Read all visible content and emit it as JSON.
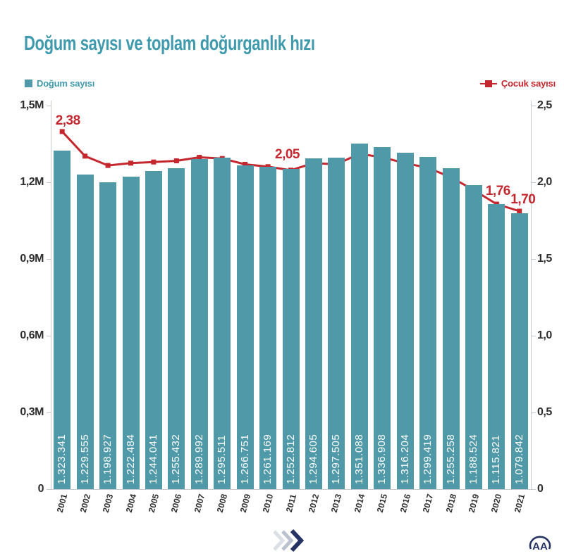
{
  "title": "Doğum sayısı ve toplam doğurganlık hızı",
  "legend": {
    "bars": "Doğum sayısı",
    "line": "Çocuk sayısı"
  },
  "axes": {
    "left_ticks": [
      "1,5M",
      "1,2M",
      "0,9M",
      "0,6M",
      "0,3M",
      "0"
    ],
    "right_ticks": [
      "2,5",
      "2,0",
      "1,5",
      "1,0",
      "0,5",
      "0"
    ]
  },
  "chart_data": {
    "type": "bar+line",
    "categories": [
      "2001",
      "2002",
      "2003",
      "2004",
      "2005",
      "2006",
      "2007",
      "2008",
      "2009",
      "2010",
      "2011",
      "2012",
      "2013",
      "2014",
      "2015",
      "2016",
      "2017",
      "2018",
      "2019",
      "2020",
      "2021"
    ],
    "series": [
      {
        "name": "Doğum sayısı",
        "type": "bar",
        "axis": "left",
        "values": [
          1323341,
          1229555,
          1198927,
          1222484,
          1244041,
          1255432,
          1289992,
          1295511,
          1266751,
          1261169,
          1252812,
          1294605,
          1297505,
          1351088,
          1336908,
          1316204,
          1299419,
          1255258,
          1188524,
          1115821,
          1079842
        ],
        "labels": [
          "1.323.341",
          "1.229.555",
          "1.198.927",
          "1.222.484",
          "1.244.041",
          "1.255.432",
          "1.289.992",
          "1.295.511",
          "1.266.751",
          "1.261.169",
          "1.252.812",
          "1.294.605",
          "1.297.505",
          "1.351.088",
          "1.336.908",
          "1.316.204",
          "1.299.419",
          "1.255.258",
          "1.188.524",
          "1.115.821",
          "1.079.842"
        ]
      },
      {
        "name": "Çocuk sayısı",
        "type": "line",
        "axis": "right",
        "values": [
          2.38,
          2.17,
          2.09,
          2.11,
          2.12,
          2.13,
          2.16,
          2.15,
          2.1,
          2.08,
          2.05,
          2.11,
          2.1,
          2.19,
          2.16,
          2.11,
          2.07,
          1.99,
          1.88,
          1.76,
          1.7
        ]
      }
    ],
    "annotations": [
      {
        "year": "2001",
        "text": "2,38"
      },
      {
        "year": "2011",
        "text": "2,05"
      },
      {
        "year": "2020",
        "text": "1,76"
      },
      {
        "year": "2021",
        "text": "1,70"
      }
    ],
    "left_ylim": [
      0,
      1500000
    ],
    "right_ylim": [
      0,
      2.5
    ],
    "grid": false,
    "legend_position": "top"
  },
  "colors": {
    "teal": "#4F99A8",
    "teal_text": "#3F9AAD",
    "red": "#C5272E",
    "axis_text": "#2E2E2E",
    "axis_line": "#C6CACF",
    "navy": "#253362",
    "chevron_light": "#DCE0E6",
    "chevron_mid": "#B9C2CE"
  },
  "footer": {
    "logo_text": "AA"
  }
}
